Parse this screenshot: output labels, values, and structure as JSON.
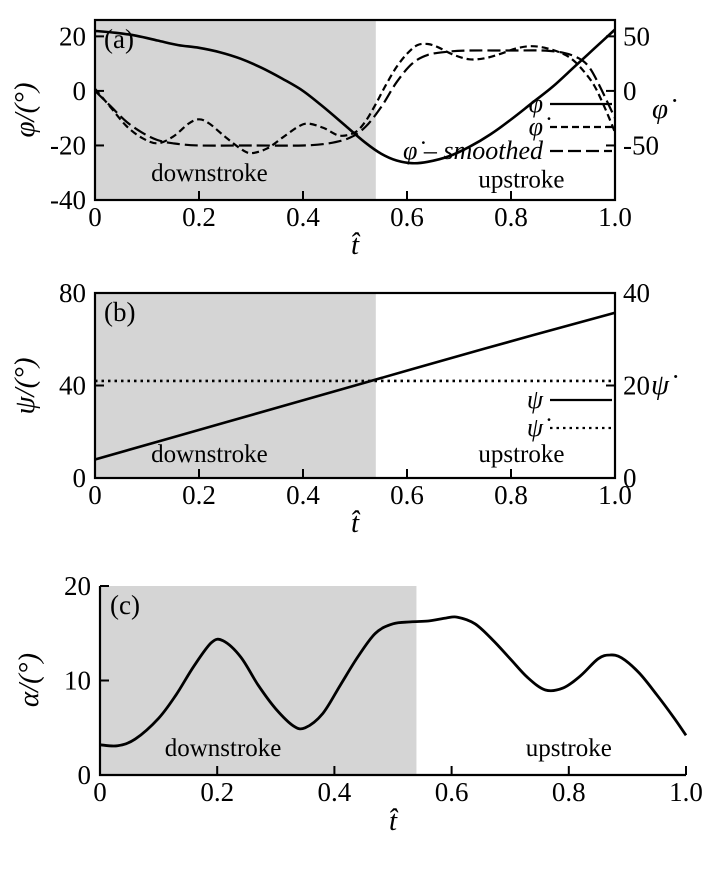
{
  "colors": {
    "background": "#ffffff",
    "shade": "#d5d5d5",
    "line": "#000000"
  },
  "chart_data": [
    {
      "id": "a",
      "type": "line",
      "panel_label": "(a)",
      "x_label": "t̂",
      "y_left_label": "φ/(°)",
      "y_right_label": "φ̇",
      "xlim": [
        0,
        1
      ],
      "ylim_left": [
        -40,
        26
      ],
      "ylim_right": [
        -100,
        65
      ],
      "x_ticks": [
        0,
        0.2,
        0.4,
        0.6,
        0.8,
        1.0
      ],
      "x_tick_labels": [
        "0",
        "0.2",
        "0.4",
        "0.6",
        "0.8",
        "1.0"
      ],
      "y_left_ticks": [
        20,
        0,
        -20,
        -40
      ],
      "y_left_tick_labels": [
        "20",
        "0",
        "-20",
        "-40"
      ],
      "y_right_ticks": [
        50,
        0,
        -50
      ],
      "y_right_tick_labels": [
        "50",
        "0",
        "-50"
      ],
      "shaded_region": {
        "x0": 0,
        "x1": 0.54
      },
      "region_labels": [
        {
          "text": "downstroke",
          "x": 0.22,
          "y": -33
        },
        {
          "text": "upstroke",
          "x": 0.82,
          "y": -35.5
        }
      ],
      "series": [
        {
          "name": "phi",
          "label": "φ",
          "axis": "left",
          "dash": "none",
          "width": 2.6,
          "points": [
            [
              0,
              22
            ],
            [
              0.04,
              21.3
            ],
            [
              0.08,
              20.2
            ],
            [
              0.12,
              18.5
            ],
            [
              0.16,
              16.8
            ],
            [
              0.2,
              15.8
            ],
            [
              0.24,
              14.2
            ],
            [
              0.28,
              11.8
            ],
            [
              0.32,
              8.5
            ],
            [
              0.36,
              4.5
            ],
            [
              0.4,
              0
            ],
            [
              0.44,
              -6
            ],
            [
              0.48,
              -12.5
            ],
            [
              0.52,
              -19
            ],
            [
              0.55,
              -23
            ],
            [
              0.58,
              -25.5
            ],
            [
              0.61,
              -26.5
            ],
            [
              0.64,
              -26
            ],
            [
              0.68,
              -24
            ],
            [
              0.72,
              -20.5
            ],
            [
              0.76,
              -16
            ],
            [
              0.8,
              -10.5
            ],
            [
              0.84,
              -4.5
            ],
            [
              0.88,
              1.5
            ],
            [
              0.92,
              8.5
            ],
            [
              0.96,
              15.5
            ],
            [
              1,
              22.5
            ]
          ]
        },
        {
          "name": "phi-dot",
          "label": "φ̇",
          "axis": "right",
          "dash": "7,4",
          "width": 2.2,
          "points": [
            [
              0,
              2
            ],
            [
              0.03,
              -15
            ],
            [
              0.06,
              -32
            ],
            [
              0.09,
              -43
            ],
            [
              0.12,
              -48
            ],
            [
              0.15,
              -42
            ],
            [
              0.18,
              -30
            ],
            [
              0.2,
              -26
            ],
            [
              0.22,
              -30
            ],
            [
              0.25,
              -42
            ],
            [
              0.28,
              -53
            ],
            [
              0.3,
              -57
            ],
            [
              0.33,
              -53
            ],
            [
              0.36,
              -43
            ],
            [
              0.39,
              -33
            ],
            [
              0.41,
              -30
            ],
            [
              0.44,
              -34
            ],
            [
              0.47,
              -41
            ],
            [
              0.5,
              -38
            ],
            [
              0.52,
              -28
            ],
            [
              0.54,
              -12
            ],
            [
              0.56,
              6
            ],
            [
              0.58,
              22
            ],
            [
              0.6,
              34
            ],
            [
              0.62,
              42
            ],
            [
              0.64,
              43
            ],
            [
              0.66,
              40
            ],
            [
              0.69,
              33
            ],
            [
              0.72,
              29
            ],
            [
              0.75,
              30
            ],
            [
              0.78,
              34
            ],
            [
              0.81,
              39
            ],
            [
              0.84,
              41
            ],
            [
              0.87,
              39
            ],
            [
              0.9,
              34
            ],
            [
              0.92,
              28
            ],
            [
              0.94,
              18
            ],
            [
              0.96,
              5
            ],
            [
              0.98,
              -15
            ],
            [
              1,
              -38
            ]
          ]
        },
        {
          "name": "phi-dot-smoothed",
          "label": "φ̇ – smoothed",
          "axis": "right",
          "dash": "13,5",
          "width": 2.2,
          "points": [
            [
              0,
              0
            ],
            [
              0.03,
              -14
            ],
            [
              0.06,
              -28
            ],
            [
              0.09,
              -38
            ],
            [
              0.12,
              -45
            ],
            [
              0.15,
              -48
            ],
            [
              0.2,
              -50
            ],
            [
              0.3,
              -50
            ],
            [
              0.4,
              -50
            ],
            [
              0.45,
              -48
            ],
            [
              0.49,
              -43
            ],
            [
              0.52,
              -33
            ],
            [
              0.55,
              -15
            ],
            [
              0.58,
              8
            ],
            [
              0.61,
              25
            ],
            [
              0.64,
              33
            ],
            [
              0.68,
              36
            ],
            [
              0.72,
              37
            ],
            [
              0.8,
              37
            ],
            [
              0.86,
              37
            ],
            [
              0.9,
              35
            ],
            [
              0.93,
              30
            ],
            [
              0.95,
              22
            ],
            [
              0.97,
              5
            ],
            [
              1,
              -25
            ]
          ]
        }
      ],
      "legend": {
        "items": [
          {
            "label": "φ",
            "dash": "none"
          },
          {
            "label": "φ̇",
            "dash": "7,4"
          },
          {
            "label": "φ̇ – smoothed",
            "dash": "13,5"
          }
        ]
      }
    },
    {
      "id": "b",
      "type": "line",
      "panel_label": "(b)",
      "x_label": "t̂",
      "y_left_label": "ψ/(°)",
      "y_right_label": "ψ̇",
      "xlim": [
        0,
        1
      ],
      "ylim_left": [
        0,
        80
      ],
      "ylim_right": [
        0,
        40
      ],
      "x_ticks": [
        0,
        0.2,
        0.4,
        0.6,
        0.8,
        1.0
      ],
      "x_tick_labels": [
        "0",
        "0.2",
        "0.4",
        "0.6",
        "0.8",
        "1.0"
      ],
      "y_left_ticks": [
        0,
        40,
        80
      ],
      "y_left_tick_labels": [
        "0",
        "40",
        "80"
      ],
      "y_right_ticks": [
        0,
        20,
        40
      ],
      "y_right_tick_labels": [
        "0",
        "20",
        "40"
      ],
      "shaded_region": {
        "x0": 0,
        "x1": 0.54
      },
      "region_labels": [
        {
          "text": "downstroke",
          "x": 0.22,
          "y": 7
        },
        {
          "text": "upstroke",
          "x": 0.82,
          "y": 7
        }
      ],
      "series": [
        {
          "name": "psi",
          "label": "ψ",
          "axis": "left",
          "dash": "none",
          "width": 2.6,
          "points": [
            [
              0,
              8
            ],
            [
              0.25,
              24
            ],
            [
              0.5,
              40
            ],
            [
              0.75,
              56
            ],
            [
              1,
              71.5
            ]
          ]
        },
        {
          "name": "psi-dot",
          "label": "ψ̇",
          "axis": "right",
          "dash": "2.5,4",
          "width": 2.6,
          "points": [
            [
              0,
              21
            ],
            [
              1,
              21
            ]
          ]
        }
      ],
      "legend": {
        "items": [
          {
            "label": "ψ",
            "dash": "none"
          },
          {
            "label": "ψ̇",
            "dash": "2.5,4"
          }
        ]
      }
    },
    {
      "id": "c",
      "type": "line",
      "panel_label": "(c)",
      "x_label": "t̂",
      "y_left_label": "α/(°)",
      "xlim": [
        0,
        1
      ],
      "ylim_left": [
        0,
        20
      ],
      "x_ticks": [
        0,
        0.2,
        0.4,
        0.6,
        0.8,
        1.0
      ],
      "x_tick_labels": [
        "0",
        "0.2",
        "0.4",
        "0.6",
        "0.8",
        "1.0"
      ],
      "y_left_ticks": [
        0,
        10,
        20
      ],
      "y_left_tick_labels": [
        "0",
        "10",
        "20"
      ],
      "shaded_region": {
        "x0": 0,
        "x1": 0.54
      },
      "region_labels": [
        {
          "text": "downstroke",
          "x": 0.21,
          "y": 2
        },
        {
          "text": "upstroke",
          "x": 0.8,
          "y": 2
        }
      ],
      "series": [
        {
          "name": "alpha",
          "label": "α",
          "axis": "left",
          "dash": "none",
          "width": 2.8,
          "points": [
            [
              0,
              3.2
            ],
            [
              0.03,
              3.1
            ],
            [
              0.06,
              3.8
            ],
            [
              0.1,
              6
            ],
            [
              0.13,
              8.5
            ],
            [
              0.16,
              11.5
            ],
            [
              0.19,
              14
            ],
            [
              0.21,
              14.2
            ],
            [
              0.24,
              12.5
            ],
            [
              0.27,
              9.5
            ],
            [
              0.3,
              7
            ],
            [
              0.33,
              5.2
            ],
            [
              0.35,
              5
            ],
            [
              0.38,
              6.5
            ],
            [
              0.41,
              9.5
            ],
            [
              0.44,
              12.5
            ],
            [
              0.47,
              15
            ],
            [
              0.5,
              16
            ],
            [
              0.53,
              16.2
            ],
            [
              0.56,
              16.3
            ],
            [
              0.59,
              16.6
            ],
            [
              0.61,
              16.7
            ],
            [
              0.64,
              16
            ],
            [
              0.67,
              14.3
            ],
            [
              0.7,
              12.3
            ],
            [
              0.73,
              10.3
            ],
            [
              0.76,
              9
            ],
            [
              0.79,
              9.2
            ],
            [
              0.82,
              10.5
            ],
            [
              0.85,
              12.3
            ],
            [
              0.87,
              12.7
            ],
            [
              0.89,
              12.4
            ],
            [
              0.92,
              10.8
            ],
            [
              0.95,
              8.5
            ],
            [
              0.98,
              6
            ],
            [
              1,
              4.2
            ]
          ]
        }
      ]
    }
  ]
}
